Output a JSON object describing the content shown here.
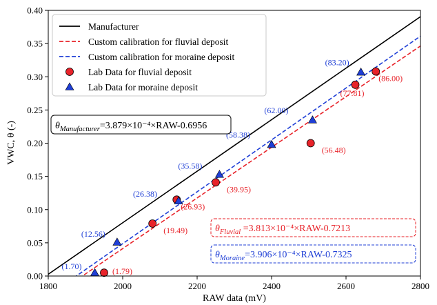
{
  "chart_data": {
    "type": "scatter",
    "title": "",
    "xlabel": "RAW data (mV)",
    "ylabel": "VWC, θ (-)",
    "xlim": [
      1800,
      2800
    ],
    "ylim": [
      0.0,
      0.4
    ],
    "xticks": [
      1800,
      2000,
      2200,
      2400,
      2600,
      2800
    ],
    "yticks": [
      0.0,
      0.05,
      0.1,
      0.15,
      0.2,
      0.25,
      0.3,
      0.35,
      0.4
    ],
    "xtick_labels": [
      "1800",
      "2000",
      "2200",
      "2400",
      "2600",
      "2800"
    ],
    "ytick_labels": [
      "0.00",
      "0.05",
      "0.10",
      "0.15",
      "0.20",
      "0.25",
      "0.30",
      "0.35",
      "0.40"
    ],
    "grid": false,
    "legend_position": "top-left",
    "lines": [
      {
        "name": "Manufacturer",
        "slope": 0.0003879,
        "intercept": -0.6956,
        "color": "#000000",
        "dash": "solid"
      },
      {
        "name": "Custom calibration for fluvial deposit",
        "slope": 0.0003813,
        "intercept": -0.7213,
        "color": "#e8232a",
        "dash": "dashed"
      },
      {
        "name": "Custom calibration for moraine deposit",
        "slope": 0.0003906,
        "intercept": -0.7325,
        "color": "#1f3fd6",
        "dash": "dashed"
      }
    ],
    "series": [
      {
        "name": "Lab Data for fluvial deposit",
        "marker": "circle",
        "color": "#e8232a",
        "points": [
          {
            "x": 1950,
            "y": 0.005,
            "label": "(1.79)"
          },
          {
            "x": 2080,
            "y": 0.079,
            "label": "(19.49)"
          },
          {
            "x": 2145,
            "y": 0.115,
            "label": "(26.93)"
          },
          {
            "x": 2250,
            "y": 0.141,
            "label": "(39.95)"
          },
          {
            "x": 2505,
            "y": 0.2,
            "label": "(56.48)"
          },
          {
            "x": 2625,
            "y": 0.288,
            "label": "(77.81)"
          },
          {
            "x": 2680,
            "y": 0.308,
            "label": "(86.00)"
          }
        ]
      },
      {
        "name": "Lab Data for moraine deposit",
        "marker": "triangle",
        "color": "#1f3fd6",
        "points": [
          {
            "x": 1925,
            "y": 0.005,
            "label": "(1.70)"
          },
          {
            "x": 1985,
            "y": 0.051,
            "label": "(12.56)"
          },
          {
            "x": 2150,
            "y": 0.113,
            "label": "(26.38)"
          },
          {
            "x": 2260,
            "y": 0.153,
            "label": "(35.58)"
          },
          {
            "x": 2400,
            "y": 0.198,
            "label": "(58.38)"
          },
          {
            "x": 2510,
            "y": 0.235,
            "label": "(62.00)"
          },
          {
            "x": 2640,
            "y": 0.307,
            "label": "(83.20)"
          }
        ]
      }
    ],
    "annotations": [
      {
        "id": "manufacturer",
        "symbol": "θ",
        "subscript": "Manufacturer",
        "equation": "=3.879×10⁻⁴×RAW-0.6956",
        "color": "#000000"
      },
      {
        "id": "fluvial",
        "symbol": "θ",
        "subscript": "Fluvial",
        "equation": " =3.813×10⁻⁴×RAW-0.7213",
        "color": "#e8232a"
      },
      {
        "id": "moraine",
        "symbol": "θ",
        "subscript": "Moraine",
        "equation": "=3.906×10⁻⁴×RAW-0.7325",
        "color": "#1f3fd6"
      }
    ]
  }
}
